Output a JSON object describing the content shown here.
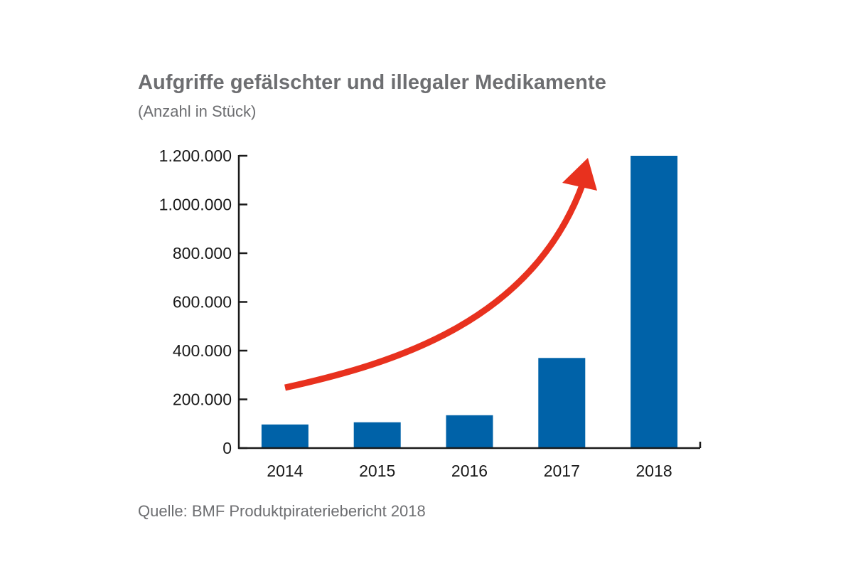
{
  "chart_data": {
    "type": "bar",
    "title": "Aufgriffe gefälschter und illegaler Medikamente",
    "subtitle": "(Anzahl in Stück)",
    "categories": [
      "2014",
      "2015",
      "2016",
      "2017",
      "2018"
    ],
    "values": [
      97000,
      106000,
      135000,
      370000,
      1200000
    ],
    "ylim": [
      0,
      1200000
    ],
    "yticks": [
      0,
      200000,
      400000,
      600000,
      800000,
      1000000,
      1200000
    ],
    "ytick_labels": [
      "0",
      "200.000",
      "400.000",
      "600.000",
      "800.000",
      "1.000.000",
      "1.200.000"
    ],
    "xlabel": "",
    "ylabel": "",
    "grid": false,
    "annotations": [
      {
        "type": "trend-arrow",
        "color": "#e8311e"
      }
    ],
    "colors": {
      "bar": "#0062a8",
      "arrow": "#e8311e",
      "axis": "#1a1a1a"
    }
  },
  "source": "Quelle: BMF Produktpiraterie­bericht 2018"
}
